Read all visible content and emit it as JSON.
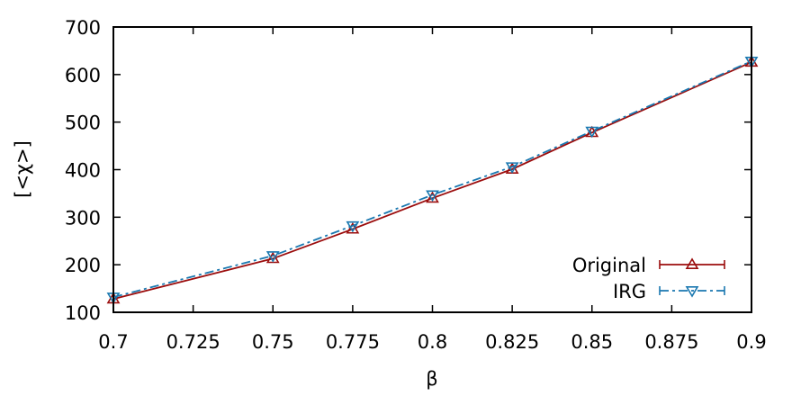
{
  "chart_data": {
    "type": "line",
    "xlabel": "β",
    "ylabel": "[<χ>]",
    "xlim": [
      0.7,
      0.9
    ],
    "ylim": [
      100,
      700
    ],
    "xticks": [
      "0.7",
      "0.725",
      "0.75",
      "0.775",
      "0.8",
      "0.825",
      "0.85",
      "0.875",
      "0.9"
    ],
    "yticks": [
      "100",
      "200",
      "300",
      "400",
      "500",
      "600",
      "700"
    ],
    "legend_position": "bottom-right",
    "grid": false,
    "series": [
      {
        "name": "Original",
        "color": "#9b0d0d",
        "marker": "triangle-up",
        "line_style": "solid",
        "x": [
          0.7,
          0.75,
          0.775,
          0.8,
          0.825,
          0.85,
          0.9
        ],
        "y": [
          128,
          213,
          275,
          340,
          401,
          478,
          626
        ]
      },
      {
        "name": "IRG",
        "color": "#1a78b0",
        "marker": "triangle-down",
        "line_style": "dash-dot",
        "x": [
          0.7,
          0.75,
          0.775,
          0.8,
          0.825,
          0.85,
          0.9
        ],
        "y": [
          132,
          219,
          282,
          347,
          406,
          481,
          628
        ]
      }
    ]
  }
}
